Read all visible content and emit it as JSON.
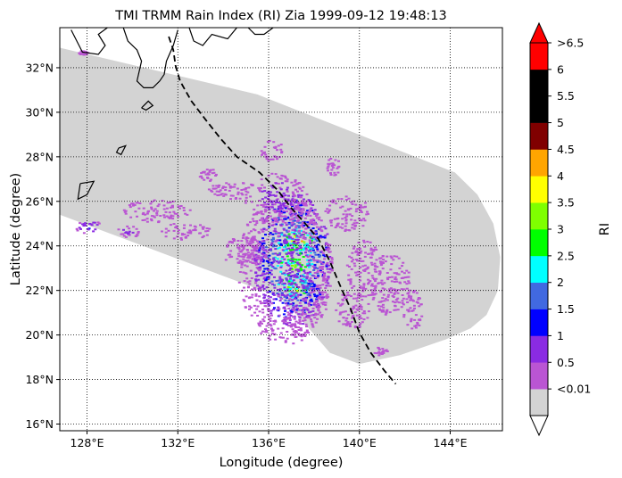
{
  "chart_data": {
    "type": "heatmap",
    "title": "TMI TRMM Rain Index (RI) Zia 1999-09-12 19:48:13",
    "xlabel": "Longitude (degree)",
    "ylabel": "Latitude (degree)",
    "xlim": [
      126.8,
      146.3
    ],
    "ylim": [
      15.7,
      33.8
    ],
    "x_ticks": [
      {
        "value": 128,
        "label": "128°E"
      },
      {
        "value": 132,
        "label": "132°E"
      },
      {
        "value": 136,
        "label": "136°E"
      },
      {
        "value": 140,
        "label": "140°E"
      },
      {
        "value": 144,
        "label": "144°E"
      }
    ],
    "y_ticks": [
      {
        "value": 16,
        "label": "16°N"
      },
      {
        "value": 18,
        "label": "18°N"
      },
      {
        "value": 20,
        "label": "20°N"
      },
      {
        "value": 22,
        "label": "22°N"
      },
      {
        "value": 24,
        "label": "24°N"
      },
      {
        "value": 26,
        "label": "26°N"
      },
      {
        "value": 28,
        "label": "28°N"
      },
      {
        "value": 30,
        "label": "30°N"
      },
      {
        "value": 32,
        "label": "32°N"
      }
    ],
    "grid": true,
    "swath_color": "#d3d3d3",
    "swath_outline": [
      [
        126.8,
        32.9
      ],
      [
        135.5,
        30.8
      ],
      [
        144.2,
        27.3
      ],
      [
        145.2,
        26.3
      ],
      [
        145.9,
        25.0
      ],
      [
        146.2,
        23.5
      ],
      [
        146.1,
        22.0
      ],
      [
        145.6,
        20.9
      ],
      [
        144.9,
        20.3
      ],
      [
        143.8,
        19.8
      ],
      [
        141.8,
        19.1
      ],
      [
        140.0,
        18.7
      ],
      [
        138.7,
        19.2
      ],
      [
        137.6,
        20.5
      ],
      [
        136.5,
        21.7
      ],
      [
        126.8,
        25.4
      ]
    ],
    "colorbar": {
      "label": "RI",
      "levels": [
        -0.01,
        0.01,
        0.5,
        1,
        1.5,
        2,
        2.5,
        3,
        3.5,
        4,
        4.5,
        5,
        5.5,
        6,
        6.5
      ],
      "tick_labels": [
        "<0.01",
        "0.5",
        "1",
        "1.5",
        "2",
        "2.5",
        "3",
        "3.5",
        "4",
        "4.5",
        "5",
        "5.5",
        "6",
        ">6.5"
      ],
      "colors": [
        "#d3d3d3",
        "#ba55d3",
        "#8a2be2",
        "#0000ff",
        "#4169e1",
        "#00ffff",
        "#00ff00",
        "#7fff00",
        "#ffff00",
        "#ffa500",
        "#800000",
        "#000000",
        "#000000",
        "#ff0000"
      ],
      "under_color": "#ffffff",
      "over_color": "#ff0000"
    },
    "rain_cells": [
      {
        "lon": 137.3,
        "lat": 24.3,
        "rlon": 0.9,
        "rlat": 0.7,
        "level": 4.5
      },
      {
        "lon": 137.2,
        "lat": 22.2,
        "rlon": 0.8,
        "rlat": 0.6,
        "level": 4.2
      },
      {
        "lon": 137.0,
        "lat": 23.4,
        "rlon": 1.7,
        "rlat": 3.0,
        "level": 2.8
      },
      {
        "lon": 136.7,
        "lat": 23.0,
        "rlon": 2.1,
        "rlat": 3.4,
        "level": 0.8
      },
      {
        "lon": 136.3,
        "lat": 26.2,
        "rlon": 1.4,
        "rlat": 1.1,
        "level": 0.8
      },
      {
        "lon": 134.4,
        "lat": 26.5,
        "rlon": 1.2,
        "rlat": 0.4,
        "level": 0.4
      },
      {
        "lon": 131.0,
        "lat": 25.6,
        "rlon": 1.5,
        "rlat": 0.5,
        "level": 0.4
      },
      {
        "lon": 128.0,
        "lat": 24.9,
        "rlon": 0.6,
        "rlat": 0.3,
        "level": 1.2
      },
      {
        "lon": 129.8,
        "lat": 24.7,
        "rlon": 0.6,
        "rlat": 0.3,
        "level": 0.8
      },
      {
        "lon": 132.3,
        "lat": 24.7,
        "rlon": 1.1,
        "rlat": 0.4,
        "level": 0.4
      },
      {
        "lon": 134.8,
        "lat": 23.8,
        "rlon": 0.9,
        "rlat": 0.7,
        "level": 0.4
      },
      {
        "lon": 139.4,
        "lat": 25.5,
        "rlon": 1.0,
        "rlat": 0.8,
        "level": 0.4
      },
      {
        "lon": 140.2,
        "lat": 23.0,
        "rlon": 0.8,
        "rlat": 1.3,
        "level": 0.4
      },
      {
        "lon": 141.3,
        "lat": 22.3,
        "rlon": 0.9,
        "rlat": 1.4,
        "level": 0.4
      },
      {
        "lon": 142.3,
        "lat": 21.2,
        "rlon": 0.5,
        "rlat": 0.9,
        "level": 0.4
      },
      {
        "lon": 139.6,
        "lat": 21.2,
        "rlon": 0.8,
        "rlat": 0.9,
        "level": 0.4
      },
      {
        "lon": 140.9,
        "lat": 19.3,
        "rlon": 0.3,
        "rlat": 0.2,
        "level": 0.4
      },
      {
        "lon": 136.1,
        "lat": 28.3,
        "rlon": 0.5,
        "rlat": 0.5,
        "level": 0.4
      },
      {
        "lon": 138.8,
        "lat": 27.6,
        "rlon": 0.3,
        "rlat": 0.4,
        "level": 0.4
      },
      {
        "lon": 133.3,
        "lat": 27.2,
        "rlon": 0.4,
        "rlat": 0.3,
        "level": 0.4
      },
      {
        "lon": 127.8,
        "lat": 32.7,
        "rlon": 0.2,
        "rlat": 0.1,
        "level": 0.4
      }
    ],
    "track": [
      [
        131.6,
        33.4
      ],
      [
        131.8,
        32.8
      ],
      [
        131.9,
        32.1
      ],
      [
        132.1,
        31.4
      ],
      [
        132.6,
        30.5
      ],
      [
        133.2,
        29.7
      ],
      [
        133.9,
        28.8
      ],
      [
        134.6,
        28.0
      ],
      [
        135.6,
        27.3
      ],
      [
        136.4,
        26.5
      ],
      [
        137.0,
        25.7
      ],
      [
        137.7,
        24.9
      ],
      [
        138.2,
        24.3
      ],
      [
        138.7,
        23.3
      ],
      [
        139.2,
        22.1
      ],
      [
        139.6,
        21.2
      ],
      [
        140.0,
        20.1
      ],
      [
        140.5,
        19.2
      ],
      [
        141.1,
        18.4
      ],
      [
        141.6,
        17.8
      ]
    ],
    "coastlines": [
      [
        [
          127.3,
          33.7
        ],
        [
          127.8,
          32.7
        ],
        [
          128.5,
          32.6
        ],
        [
          128.8,
          33.0
        ],
        [
          128.5,
          33.5
        ],
        [
          128.9,
          33.8
        ]
      ],
      [
        [
          129.6,
          33.8
        ],
        [
          129.8,
          33.2
        ],
        [
          130.2,
          32.8
        ],
        [
          130.4,
          32.3
        ],
        [
          130.2,
          31.4
        ],
        [
          130.5,
          31.1
        ],
        [
          130.9,
          31.1
        ],
        [
          131.2,
          31.4
        ],
        [
          131.4,
          31.7
        ],
        [
          131.5,
          32.3
        ],
        [
          131.8,
          33.0
        ],
        [
          132.0,
          33.7
        ]
      ],
      [
        [
          132.5,
          33.8
        ],
        [
          132.7,
          33.2
        ],
        [
          133.1,
          33.0
        ],
        [
          133.5,
          33.5
        ],
        [
          134.2,
          33.3
        ],
        [
          134.6,
          33.8
        ]
      ],
      [
        [
          135.1,
          33.8
        ],
        [
          135.4,
          33.5
        ],
        [
          135.8,
          33.5
        ],
        [
          136.2,
          33.8
        ]
      ],
      [
        [
          130.4,
          30.2
        ],
        [
          130.7,
          30.5
        ],
        [
          130.9,
          30.3
        ],
        [
          130.6,
          30.1
        ],
        [
          130.4,
          30.2
        ]
      ],
      [
        [
          129.4,
          28.4
        ],
        [
          129.7,
          28.5
        ],
        [
          129.5,
          28.1
        ],
        [
          129.3,
          28.2
        ],
        [
          129.4,
          28.4
        ]
      ],
      [
        [
          127.7,
          26.8
        ],
        [
          128.3,
          26.9
        ],
        [
          128.0,
          26.3
        ],
        [
          127.6,
          26.1
        ],
        [
          127.7,
          26.8
        ]
      ]
    ]
  }
}
